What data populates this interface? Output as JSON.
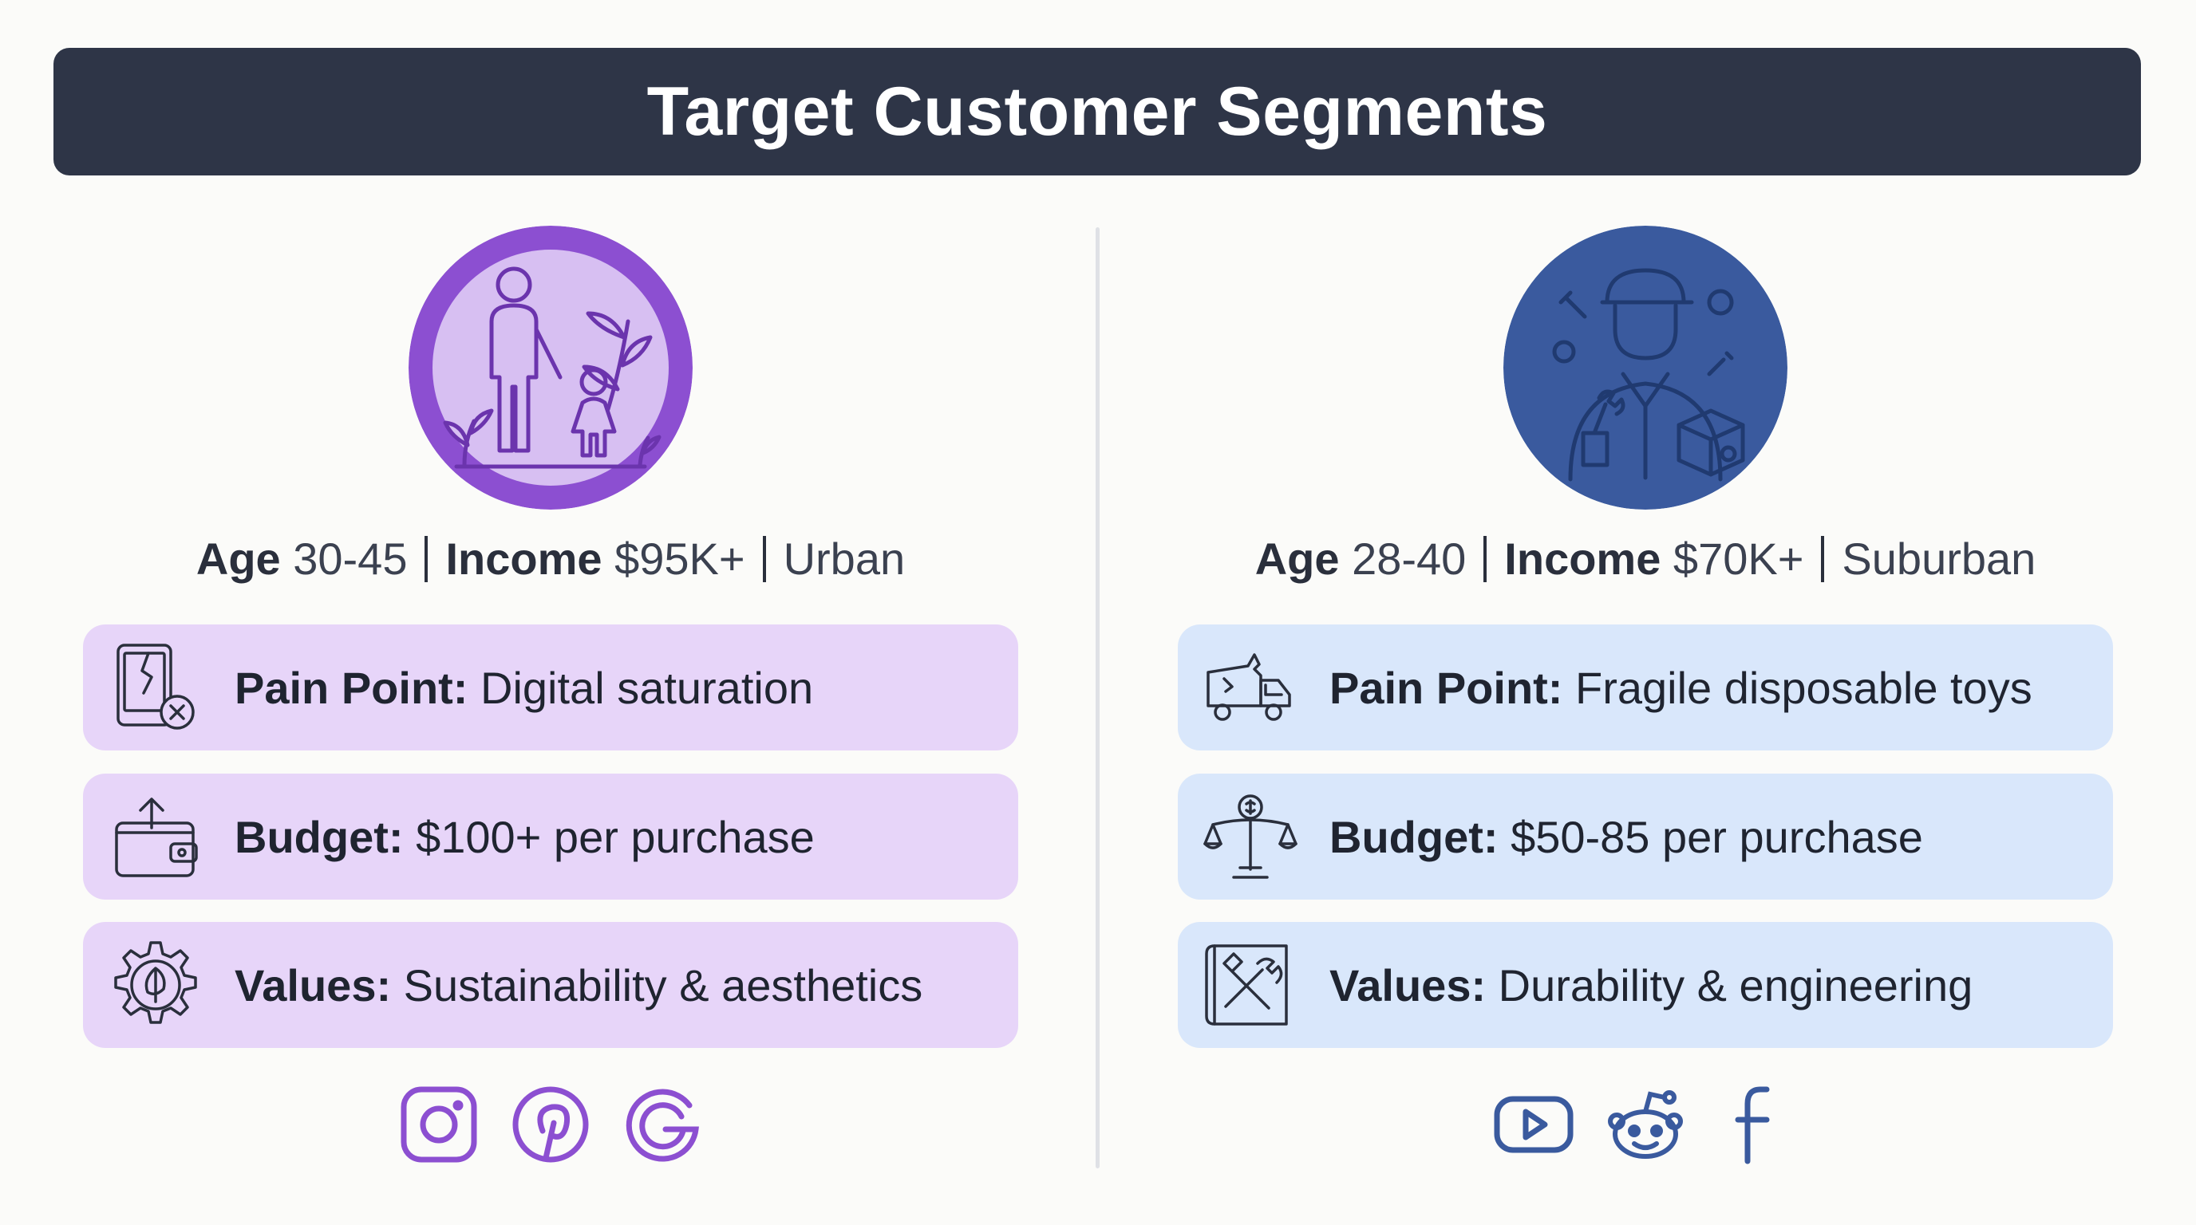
{
  "title": "Target Customer Segments",
  "segments": [
    {
      "avatar_icon": "parent-child-icon",
      "accent": "#8c4fd1",
      "card_color": "#e7d5f9",
      "demographics": {
        "age_label": "Age",
        "age_value": "30-45",
        "income_label": "Income",
        "income_value": "$95K+",
        "location": "Urban"
      },
      "cards": [
        {
          "icon": "broken-tablet-icon",
          "label": "Pain Point:",
          "value": "Digital saturation"
        },
        {
          "icon": "wallet-icon",
          "label": "Budget:",
          "value": "$100+ per purchase"
        },
        {
          "icon": "leaf-gear-icon",
          "label": "Values:",
          "value": "Sustainability & aesthetics"
        }
      ],
      "socials": [
        "instagram-icon",
        "pinterest-icon",
        "google-icon"
      ]
    },
    {
      "avatar_icon": "mechanic-icon",
      "accent": "#3a5a9e",
      "card_color": "#d9e7fb",
      "demographics": {
        "age_label": "Age",
        "age_value": "28-40",
        "income_label": "Income",
        "income_value": "$70K+",
        "location": "Suburban"
      },
      "cards": [
        {
          "icon": "broken-truck-icon",
          "label": "Pain Point:",
          "value": "Fragile disposable toys"
        },
        {
          "icon": "balance-scale-icon",
          "label": "Budget:",
          "value": "$50-85 per purchase"
        },
        {
          "icon": "blueprint-tools-icon",
          "label": "Values:",
          "value": "Durability & engineering"
        }
      ],
      "socials": [
        "youtube-icon",
        "reddit-icon",
        "facebook-icon"
      ]
    }
  ]
}
